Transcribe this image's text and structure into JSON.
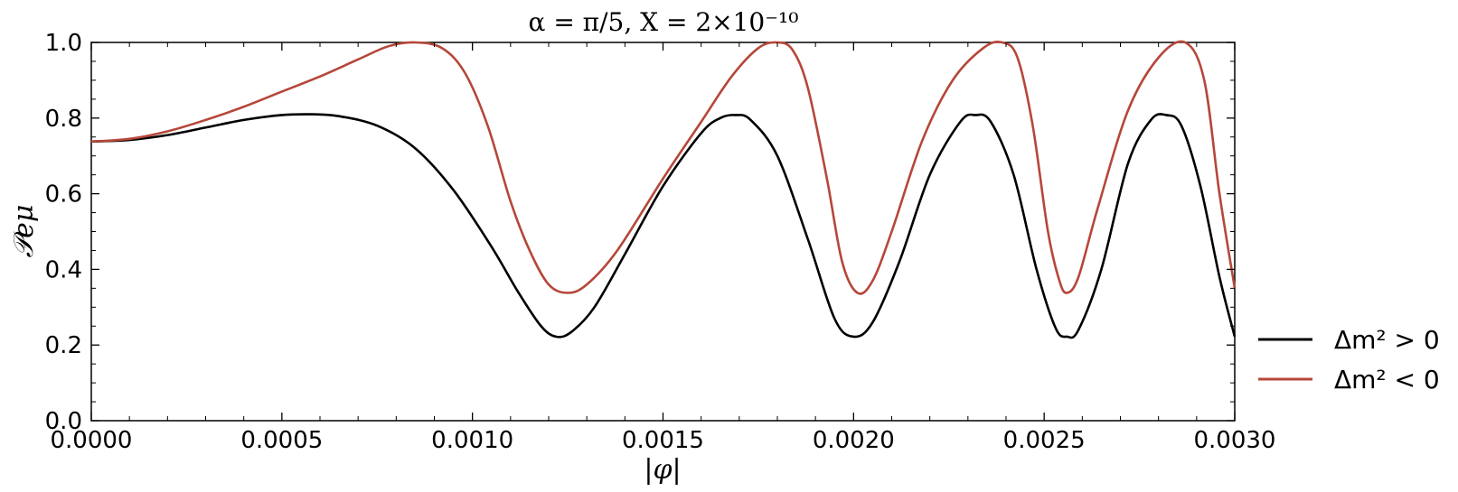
{
  "chart_data": {
    "type": "line",
    "title": "α = π/5, X = 2×10⁻¹⁰",
    "xlabel": "|φ|",
    "ylabel": "𝒫eμ",
    "xlim": [
      0,
      0.003
    ],
    "ylim": [
      0,
      1
    ],
    "xticks": [
      "0.0000",
      "0.0005",
      "0.0010",
      "0.0015",
      "0.0020",
      "0.0025",
      "0.0030"
    ],
    "yticks": [
      "0.0",
      "0.2",
      "0.4",
      "0.6",
      "0.8",
      "1.0"
    ],
    "legend_position": "outside-right",
    "grid": false,
    "series": [
      {
        "name": "Δm² > 0",
        "color": "#000000",
        "points": [
          [
            0.0,
            0.738
          ],
          [
            0.0001,
            0.742
          ],
          [
            0.0002,
            0.755
          ],
          [
            0.0003,
            0.775
          ],
          [
            0.0004,
            0.795
          ],
          [
            0.0005,
            0.808
          ],
          [
            0.00058,
            0.81
          ],
          [
            0.00065,
            0.805
          ],
          [
            0.00075,
            0.78
          ],
          [
            0.00085,
            0.72
          ],
          [
            0.00095,
            0.61
          ],
          [
            0.00105,
            0.46
          ],
          [
            0.00112,
            0.34
          ],
          [
            0.00118,
            0.25
          ],
          [
            0.00122,
            0.222
          ],
          [
            0.00126,
            0.235
          ],
          [
            0.00132,
            0.3
          ],
          [
            0.0014,
            0.44
          ],
          [
            0.0015,
            0.62
          ],
          [
            0.0016,
            0.76
          ],
          [
            0.00165,
            0.8
          ],
          [
            0.00169,
            0.808
          ],
          [
            0.00173,
            0.795
          ],
          [
            0.0018,
            0.7
          ],
          [
            0.00188,
            0.48
          ],
          [
            0.00195,
            0.27
          ],
          [
            0.002,
            0.222
          ],
          [
            0.00205,
            0.26
          ],
          [
            0.00212,
            0.42
          ],
          [
            0.0022,
            0.65
          ],
          [
            0.00228,
            0.79
          ],
          [
            0.00232,
            0.808
          ],
          [
            0.00236,
            0.79
          ],
          [
            0.00242,
            0.65
          ],
          [
            0.00248,
            0.4
          ],
          [
            0.00253,
            0.245
          ],
          [
            0.00256,
            0.222
          ],
          [
            0.00259,
            0.24
          ],
          [
            0.00265,
            0.4
          ],
          [
            0.00272,
            0.68
          ],
          [
            0.00278,
            0.795
          ],
          [
            0.00282,
            0.808
          ],
          [
            0.00286,
            0.78
          ],
          [
            0.00291,
            0.62
          ],
          [
            0.00296,
            0.38
          ],
          [
            0.003,
            0.222
          ]
        ]
      },
      {
        "name": "Δm² < 0",
        "color": "#b5473a",
        "points": [
          [
            0.0,
            0.738
          ],
          [
            0.0001,
            0.745
          ],
          [
            0.0002,
            0.765
          ],
          [
            0.0003,
            0.795
          ],
          [
            0.0004,
            0.83
          ],
          [
            0.0005,
            0.87
          ],
          [
            0.0006,
            0.91
          ],
          [
            0.0007,
            0.955
          ],
          [
            0.00078,
            0.99
          ],
          [
            0.00085,
            1.0
          ],
          [
            0.00092,
            0.985
          ],
          [
            0.00098,
            0.92
          ],
          [
            0.00104,
            0.78
          ],
          [
            0.0011,
            0.58
          ],
          [
            0.00115,
            0.45
          ],
          [
            0.0012,
            0.36
          ],
          [
            0.00125,
            0.338
          ],
          [
            0.0013,
            0.36
          ],
          [
            0.00138,
            0.45
          ],
          [
            0.0015,
            0.64
          ],
          [
            0.0016,
            0.79
          ],
          [
            0.00168,
            0.91
          ],
          [
            0.00175,
            0.985
          ],
          [
            0.0018,
            1.0
          ],
          [
            0.00184,
            0.98
          ],
          [
            0.00188,
            0.88
          ],
          [
            0.00193,
            0.64
          ],
          [
            0.00197,
            0.42
          ],
          [
            0.00201,
            0.338
          ],
          [
            0.00205,
            0.37
          ],
          [
            0.0021,
            0.5
          ],
          [
            0.00218,
            0.74
          ],
          [
            0.00226,
            0.9
          ],
          [
            0.00234,
            0.985
          ],
          [
            0.00239,
            1.0
          ],
          [
            0.00243,
            0.96
          ],
          [
            0.00247,
            0.78
          ],
          [
            0.00251,
            0.5
          ],
          [
            0.00254,
            0.37
          ],
          [
            0.00256,
            0.338
          ],
          [
            0.00259,
            0.38
          ],
          [
            0.00264,
            0.56
          ],
          [
            0.00272,
            0.82
          ],
          [
            0.0028,
            0.96
          ],
          [
            0.00287,
            1.0
          ],
          [
            0.00292,
            0.9
          ],
          [
            0.00296,
            0.6
          ],
          [
            0.003,
            0.35
          ]
        ]
      }
    ]
  }
}
